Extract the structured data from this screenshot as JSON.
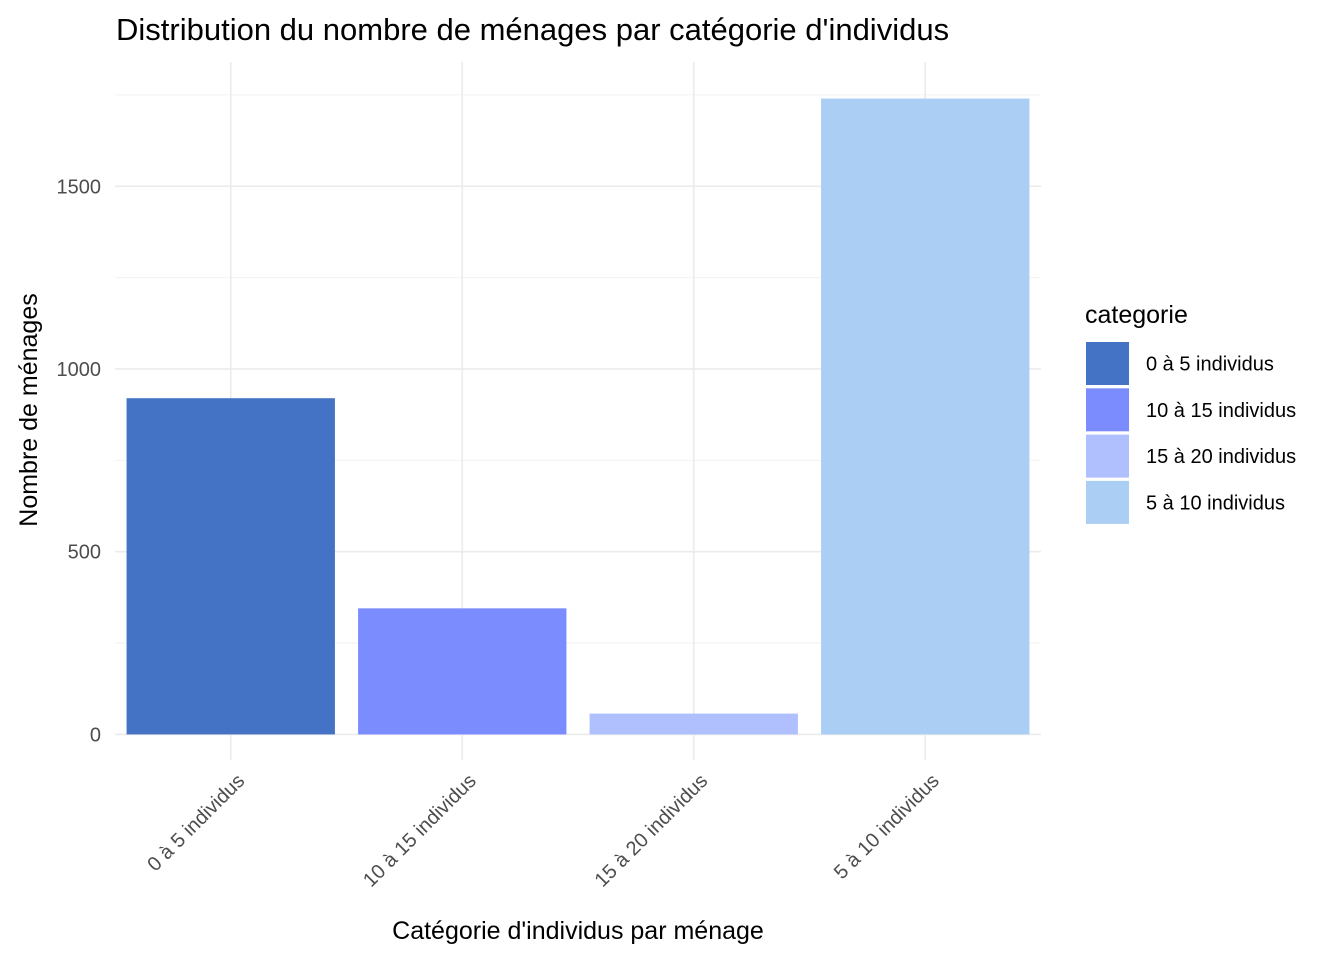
{
  "chart_data": {
    "type": "bar",
    "title": "Distribution du nombre de ménages par catégorie d'individus",
    "xlabel": "Catégorie d'individus par ménage",
    "ylabel": "Nombre de ménages",
    "categories": [
      "0 à 5 individus",
      "10 à 15 individus",
      "15 à 20 individus",
      "5 à 10 individus"
    ],
    "values": [
      920,
      345,
      57,
      1740
    ],
    "colors": [
      "#4472C4",
      "#7B8CFF",
      "#B0C0FF",
      "#ABCFF4"
    ],
    "ylim": [
      -70,
      1840
    ],
    "yticks": [
      0,
      500,
      1000,
      1500
    ],
    "ytick_labels": [
      "0",
      "500",
      "1000",
      "1500"
    ],
    "grid": true,
    "legend": {
      "title": "categorie",
      "position": "right",
      "entries": [
        "0 à 5 individus",
        "10 à 15 individus",
        "15 à 20 individus",
        "5 à 10 individus"
      ]
    }
  }
}
